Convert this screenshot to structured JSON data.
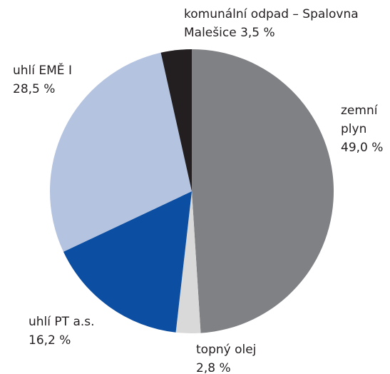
{
  "chart_data": {
    "type": "pie",
    "categories": [
      "zemní plyn",
      "topný olej",
      "uhlí PT a.s.",
      "uhlí EMĚ I",
      "komunální odpad – Spalovna Malešice"
    ],
    "values": [
      49.0,
      2.8,
      16.2,
      28.5,
      3.5
    ],
    "value_labels": [
      "49,0 %",
      "2,8 %",
      "16,2 %",
      "28,5 %",
      "3,5 %"
    ],
    "colors": [
      "#808184",
      "#d9d9d9",
      "#0b4ea2",
      "#b4c3e0",
      "#231f20"
    ],
    "start_angle": 0,
    "direction": "clockwise"
  }
}
